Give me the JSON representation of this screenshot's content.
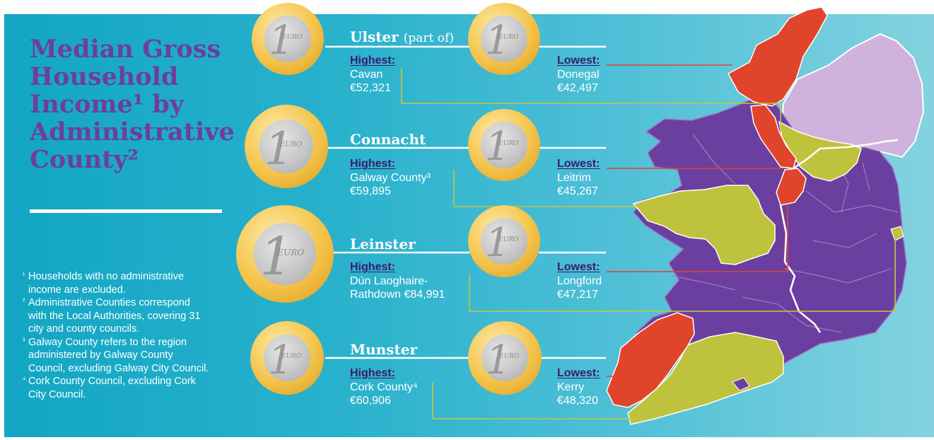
{
  "title_lines": [
    "Median Gross",
    "Household",
    "Income¹ by",
    "Administrative",
    "County²"
  ],
  "footnotes": [
    {
      "mark": "¹",
      "lines": [
        "Households with no administrative",
        "income are excluded."
      ]
    },
    {
      "mark": "²",
      "lines": [
        "Administrative Counties correspond",
        "with the Local Authorities, covering 31",
        "city and county councils."
      ]
    },
    {
      "mark": "³",
      "lines": [
        "Galway County refers to the region",
        "administered by Galway County",
        "Council, excluding Galway City Council."
      ]
    },
    {
      "mark": "⁴",
      "lines": [
        "Cork County Council, excluding Cork",
        "City Council."
      ]
    }
  ],
  "coin": {
    "numeral": "1",
    "word": "EURO"
  },
  "provinces": [
    {
      "name": "Ulster",
      "name_note": "(part of)",
      "highest": {
        "label": "Highest:",
        "lines": [
          "Cavan",
          "€52,321"
        ]
      },
      "lowest": {
        "label": "Lowest:",
        "lines": [
          "Donegal",
          "€42,497"
        ]
      }
    },
    {
      "name": "Connacht",
      "name_note": "",
      "highest": {
        "label": "Highest:",
        "lines": [
          "Galway County³",
          "€59,895"
        ]
      },
      "lowest": {
        "label": "Lowest:",
        "lines": [
          "Leitrim",
          "€45,267"
        ]
      }
    },
    {
      "name": "Leinster",
      "name_note": "",
      "highest": {
        "label": "Highest:",
        "lines": [
          "Dún Laoghaire-",
          "Rathdown €84,991"
        ]
      },
      "lowest": {
        "label": "Lowest:",
        "lines": [
          "Longford",
          "€47,217"
        ]
      }
    },
    {
      "name": "Munster",
      "name_note": "",
      "highest": {
        "label": "Highest:",
        "lines": [
          "Cork County⁴",
          "€60,906"
        ]
      },
      "lowest": {
        "label": "Lowest:",
        "lines": [
          "Kerry",
          "€48,320"
        ]
      }
    }
  ],
  "colors": {
    "background": "#2bb3cc",
    "title": "#6e3e9c",
    "label": "#3b1a6e",
    "highest_fill": "#bfc23c",
    "lowest_fill": "#e0452b",
    "county_fill": "#6b3fa0",
    "northern_ireland": "#cfb3dc"
  }
}
